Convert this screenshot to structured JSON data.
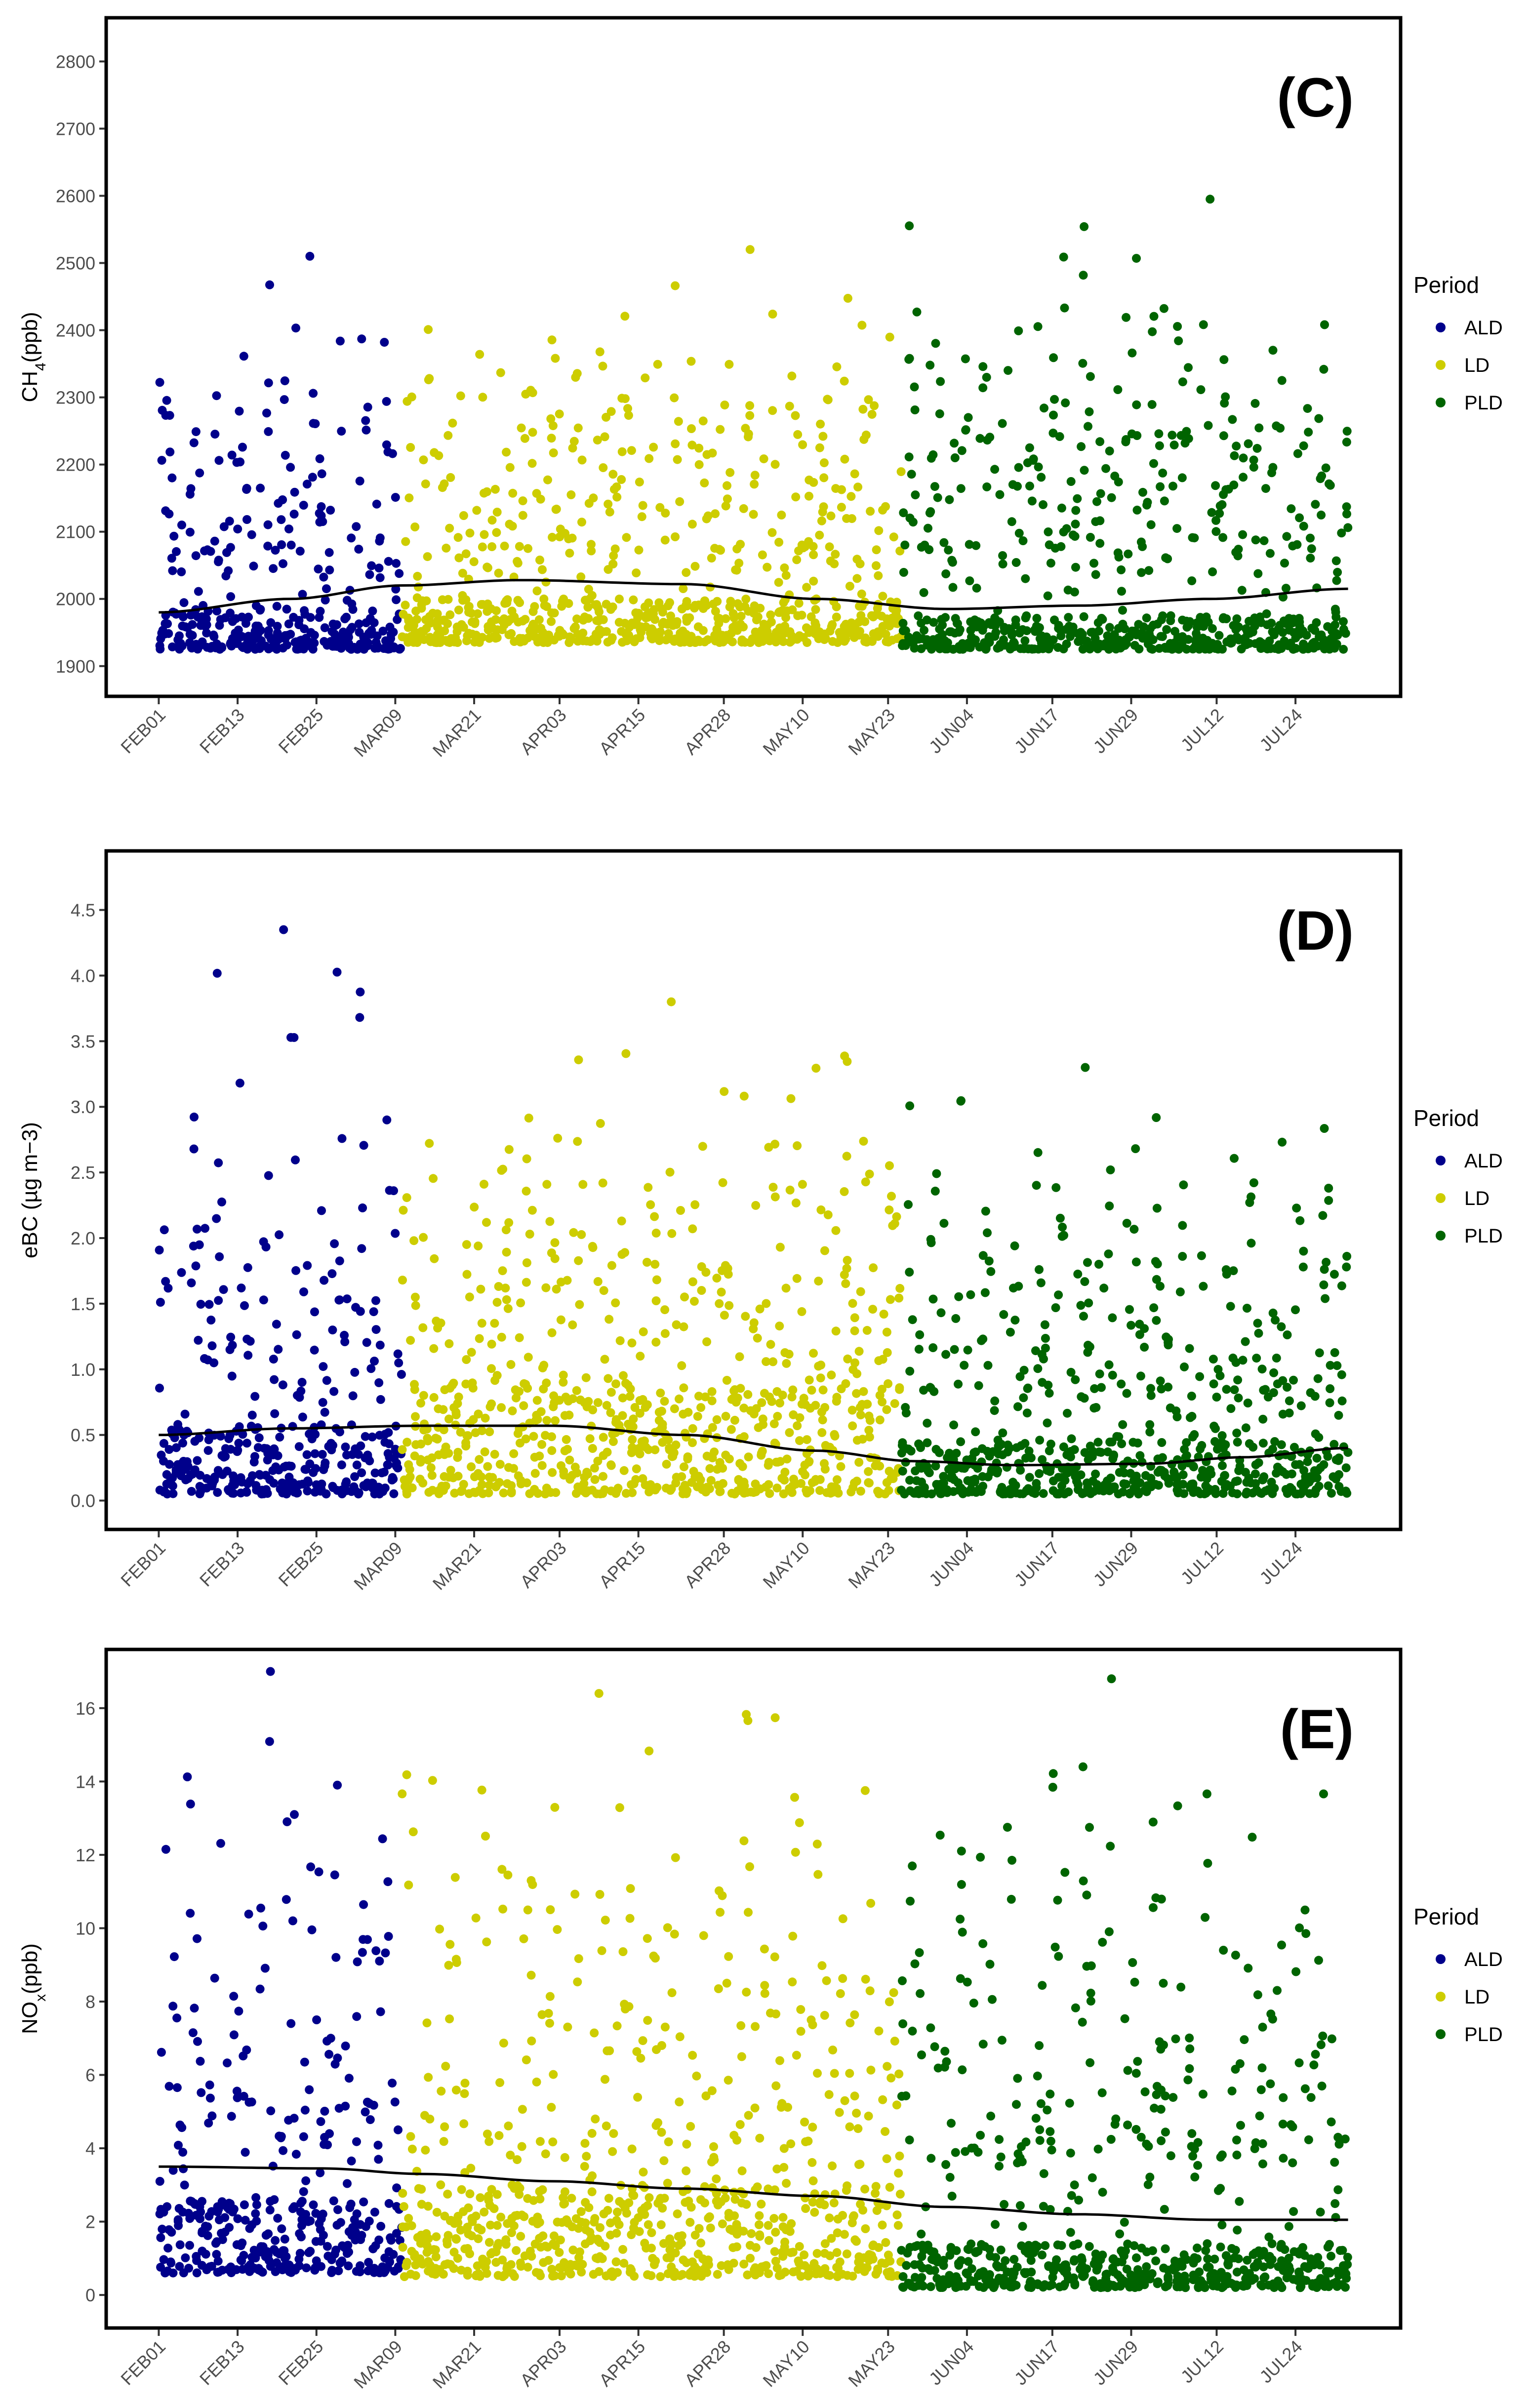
{
  "colors": {
    "ALD": "#00008b",
    "LD": "#cdcd00",
    "PLD": "#006400",
    "trend": "#000000"
  },
  "x_tick_labels": [
    "FEB01",
    "FEB13",
    "FEB25",
    "MAR09",
    "MAR21",
    "APR03",
    "APR15",
    "APR28",
    "MAY10",
    "MAY23",
    "JUN04",
    "JUN17",
    "JUN29",
    "JUL12",
    "JUL24"
  ],
  "chart_data": [
    {
      "type": "scatter",
      "panel_label": "(C)",
      "ylabel_main": "CH",
      "ylabel_sub": "4",
      "ylabel_rest": "(ppb)",
      "ylim": [
        1855,
        2865
      ],
      "yticks": [
        1900,
        2000,
        2100,
        2200,
        2300,
        2400,
        2500,
        2600,
        2700,
        2800
      ],
      "legend": {
        "title": "Period",
        "entries": [
          "ALD",
          "LD",
          "PLD"
        ]
      },
      "period_boundaries_day": [
        0,
        37,
        113,
        181
      ],
      "baseline": {
        "ALD": [
          1925,
          1985
        ],
        "LD": [
          1935,
          2000
        ],
        "PLD": [
          1925,
          1975
        ]
      },
      "spike_max": {
        "ALD": 2510,
        "LD": 2520,
        "PLD": 2595
      },
      "trend": [
        [
          0,
          1980
        ],
        [
          20,
          2000
        ],
        [
          37,
          2020
        ],
        [
          55,
          2028
        ],
        [
          80,
          2022
        ],
        [
          100,
          2000
        ],
        [
          120,
          1985
        ],
        [
          140,
          1990
        ],
        [
          160,
          2000
        ],
        [
          181,
          2015
        ]
      ]
    },
    {
      "type": "scatter",
      "panel_label": "(D)",
      "ylabel_main": "eBC (µg m−3)",
      "ylabel_sub": "",
      "ylabel_rest": "",
      "ylim": [
        -0.22,
        4.95
      ],
      "yticks": [
        0.0,
        0.5,
        1.0,
        1.5,
        2.0,
        2.5,
        3.0,
        3.5,
        4.0,
        4.5
      ],
      "ytick_labels": [
        "0.0",
        "0.5",
        "1.0",
        "1.5",
        "2.0",
        "2.5",
        "3.0",
        "3.5",
        "4.0",
        "4.5"
      ],
      "legend": {
        "title": "Period",
        "entries": [
          "ALD",
          "LD",
          "PLD"
        ]
      },
      "period_boundaries_day": [
        0,
        37,
        113,
        181
      ],
      "baseline": {
        "ALD": [
          0.05,
          0.6
        ],
        "LD": [
          0.05,
          0.9
        ],
        "PLD": [
          0.05,
          0.45
        ]
      },
      "spike_max": {
        "ALD": 4.35,
        "LD": 3.8,
        "PLD": 3.3
      },
      "trend": [
        [
          0,
          0.5
        ],
        [
          20,
          0.55
        ],
        [
          40,
          0.57
        ],
        [
          60,
          0.57
        ],
        [
          80,
          0.5
        ],
        [
          100,
          0.38
        ],
        [
          115,
          0.3
        ],
        [
          130,
          0.27
        ],
        [
          150,
          0.28
        ],
        [
          165,
          0.33
        ],
        [
          181,
          0.4
        ]
      ]
    },
    {
      "type": "scatter",
      "panel_label": "(E)",
      "ylabel_main": "NO",
      "ylabel_sub": "x",
      "ylabel_rest": "(ppb)",
      "ylim": [
        -0.9,
        17.6
      ],
      "yticks": [
        0,
        2,
        4,
        6,
        8,
        10,
        12,
        14,
        16
      ],
      "legend": {
        "title": "Period",
        "entries": [
          "ALD",
          "LD",
          "PLD"
        ]
      },
      "period_boundaries_day": [
        0,
        37,
        113,
        181
      ],
      "baseline": {
        "ALD": [
          0.6,
          2.6
        ],
        "LD": [
          0.5,
          3.0
        ],
        "PLD": [
          0.2,
          1.4
        ]
      },
      "spike_max": {
        "ALD": 17.0,
        "LD": 16.4,
        "PLD": 16.8
      },
      "trend": [
        [
          0,
          3.5
        ],
        [
          25,
          3.45
        ],
        [
          40,
          3.3
        ],
        [
          60,
          3.1
        ],
        [
          80,
          2.9
        ],
        [
          100,
          2.7
        ],
        [
          120,
          2.4
        ],
        [
          140,
          2.2
        ],
        [
          160,
          2.05
        ],
        [
          181,
          2.05
        ]
      ]
    }
  ]
}
